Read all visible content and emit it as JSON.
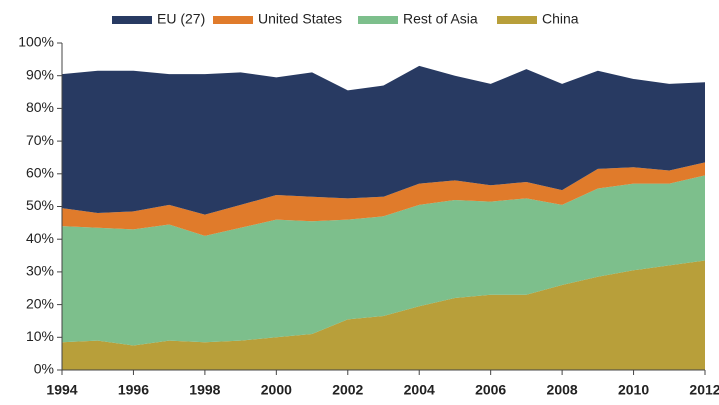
{
  "chart_data": {
    "type": "stacked_area",
    "x": [
      1994,
      1995,
      1996,
      1997,
      1998,
      1999,
      2000,
      2001,
      2002,
      2003,
      2004,
      2005,
      2006,
      2007,
      2008,
      2009,
      2010,
      2011,
      2012
    ],
    "series": [
      {
        "name": "EU (27)",
        "color": "#283a62",
        "values": [
          41,
          43.5,
          43,
          40,
          43,
          40.5,
          36,
          38,
          33,
          34,
          36,
          32,
          31,
          34.5,
          32.5,
          30,
          27,
          26.5,
          24.5
        ]
      },
      {
        "name": "United States",
        "color": "#e07b2b",
        "values": [
          5.5,
          4.5,
          5.5,
          6,
          6.5,
          7,
          7.5,
          7.5,
          6.5,
          6,
          6.5,
          6,
          5,
          5,
          4.5,
          6,
          5,
          4,
          4
        ]
      },
      {
        "name": "Rest of Asia",
        "color": "#7dbf8c",
        "values": [
          35.5,
          34.5,
          35.5,
          35.5,
          32.5,
          34.5,
          36,
          34.5,
          30.5,
          30.5,
          31,
          30,
          28.5,
          29.5,
          24.5,
          27,
          26.5,
          25,
          26
        ]
      },
      {
        "name": "China",
        "color": "#b89f3a",
        "values": [
          8.5,
          9,
          7.5,
          9,
          8.5,
          9,
          10,
          11,
          15.5,
          16.5,
          19.5,
          22,
          23,
          23,
          26,
          28.5,
          30.5,
          32,
          33.5
        ]
      }
    ],
    "xlim": [
      1994,
      2012
    ],
    "xticks": [
      1994,
      1996,
      1998,
      2000,
      2002,
      2004,
      2006,
      2008,
      2010,
      2012
    ],
    "ylim": [
      0,
      100
    ],
    "yticks": [
      {
        "value": 0,
        "label": "0%"
      },
      {
        "value": 10,
        "label": "10%"
      },
      {
        "value": 20,
        "label": "20%"
      },
      {
        "value": 30,
        "label": "30%"
      },
      {
        "value": 40,
        "label": "40%"
      },
      {
        "value": 50,
        "label": "50%"
      },
      {
        "value": 60,
        "label": "60%"
      },
      {
        "value": 70,
        "label": "70%"
      },
      {
        "value": 80,
        "label": "80%"
      },
      {
        "value": 90,
        "label": "90%"
      },
      {
        "value": 100,
        "label": "100%"
      }
    ],
    "grid": false
  }
}
